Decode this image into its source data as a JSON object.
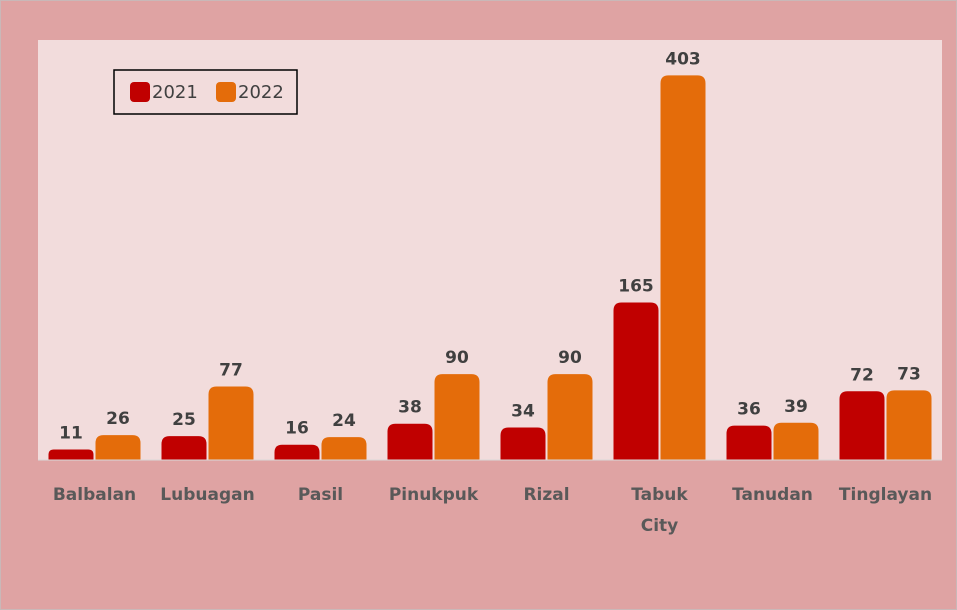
{
  "chart_data": {
    "type": "bar",
    "categories": [
      "Balbalan",
      "Lubuagan",
      "Pasil",
      "Pinukpuk",
      "Rizal",
      "Tabuk City",
      "Tanudan",
      "Tinglayan"
    ],
    "series": [
      {
        "name": "2021",
        "color": "#c00000",
        "values": [
          11,
          25,
          16,
          38,
          34,
          165,
          36,
          72
        ]
      },
      {
        "name": "2022",
        "color": "#e46c0a",
        "values": [
          26,
          77,
          24,
          90,
          90,
          403,
          39,
          73
        ]
      }
    ],
    "ylim": [
      0,
      440
    ]
  }
}
